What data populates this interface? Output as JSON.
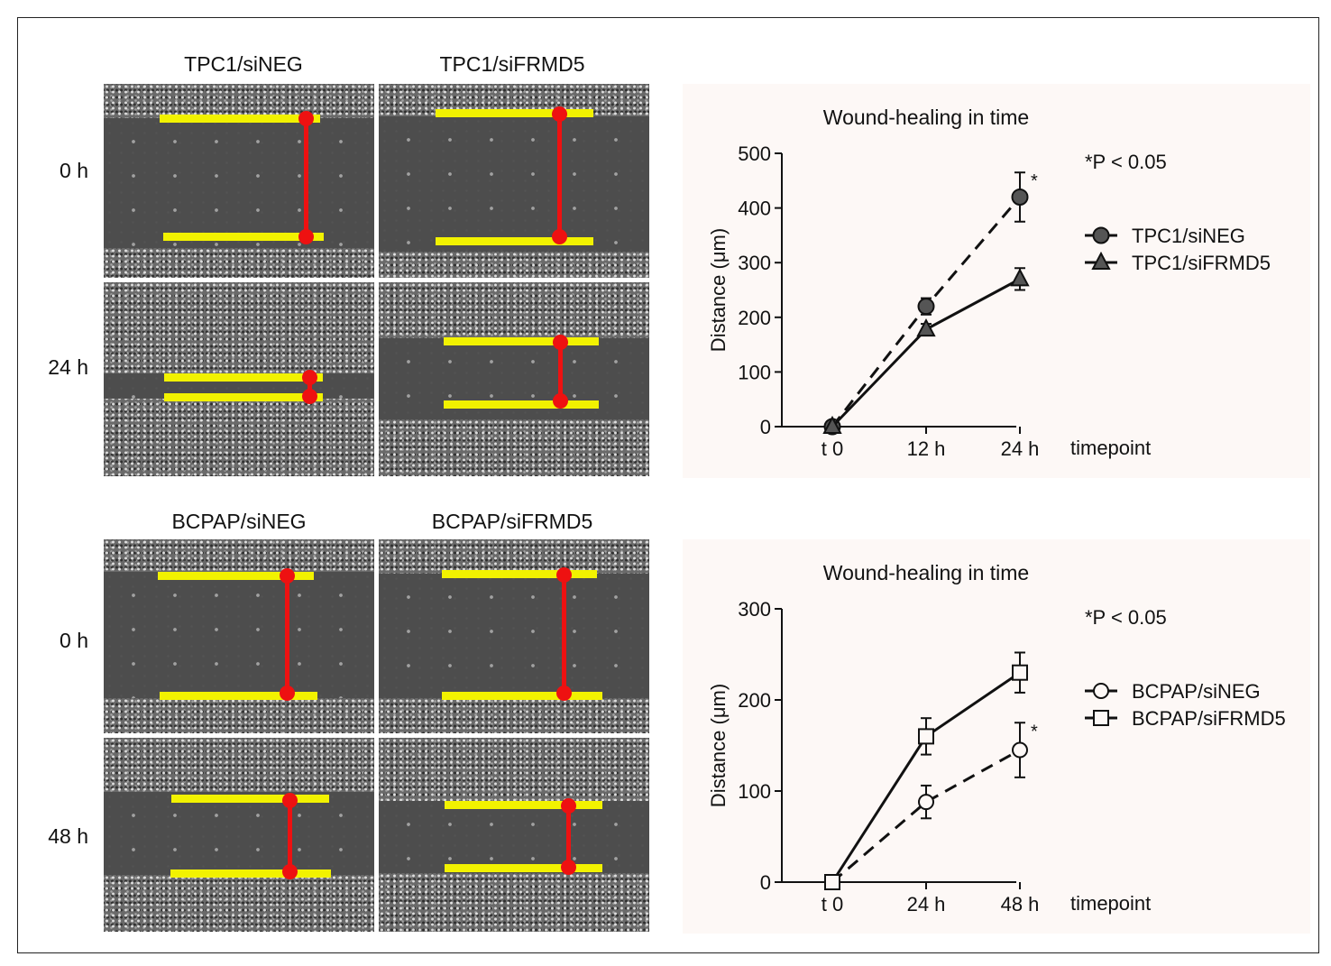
{
  "micrographs": {
    "top": {
      "columns": [
        "TPC1/siNEG",
        "TPC1/siFRMD5"
      ],
      "rows": [
        "0 h",
        "24 h"
      ]
    },
    "bottom": {
      "columns": [
        "BCPAP/siNEG",
        "BCPAP/siFRMD5"
      ],
      "rows": [
        "0 h",
        "48 h"
      ]
    }
  },
  "colors": {
    "marker_yellow": "#f2f200",
    "marker_red": "#ee1111",
    "panel_bg": "#fdf8f6"
  },
  "chart_data": [
    {
      "type": "line",
      "title": "Wound-healing in time",
      "xlabel": "timepoint",
      "ylabel": "Distance (μm)",
      "categories": [
        "t 0",
        "12 h",
        "24 h"
      ],
      "ylim": [
        0,
        500
      ],
      "yticks": [
        0,
        100,
        200,
        300,
        400,
        500
      ],
      "annotation": "*P < 0.05",
      "significance_marker": "*",
      "legend_position": "right",
      "series": [
        {
          "name": "TPC1/siNEG",
          "marker": "filled-circle",
          "line": "dashed",
          "values": [
            0,
            220,
            420
          ],
          "errors": [
            0,
            15,
            45
          ]
        },
        {
          "name": "TPC1/siFRMD5",
          "marker": "filled-triangle",
          "line": "solid",
          "values": [
            0,
            178,
            270
          ],
          "errors": [
            0,
            10,
            20
          ]
        }
      ]
    },
    {
      "type": "line",
      "title": "Wound-healing in time",
      "xlabel": "timepoint",
      "ylabel": "Distance (μm)",
      "categories": [
        "t 0",
        "24 h",
        "48 h"
      ],
      "ylim": [
        0,
        300
      ],
      "yticks": [
        0,
        100,
        200,
        300
      ],
      "annotation": "*P < 0.05",
      "significance_marker": "*",
      "legend_position": "right",
      "series": [
        {
          "name": "BCPAP/siNEG",
          "marker": "open-circle",
          "line": "dashed",
          "values": [
            0,
            88,
            145
          ],
          "errors": [
            0,
            18,
            30
          ]
        },
        {
          "name": "BCPAP/siFRMD5",
          "marker": "open-square",
          "line": "solid",
          "values": [
            0,
            160,
            230
          ],
          "errors": [
            0,
            20,
            22
          ]
        }
      ]
    }
  ]
}
